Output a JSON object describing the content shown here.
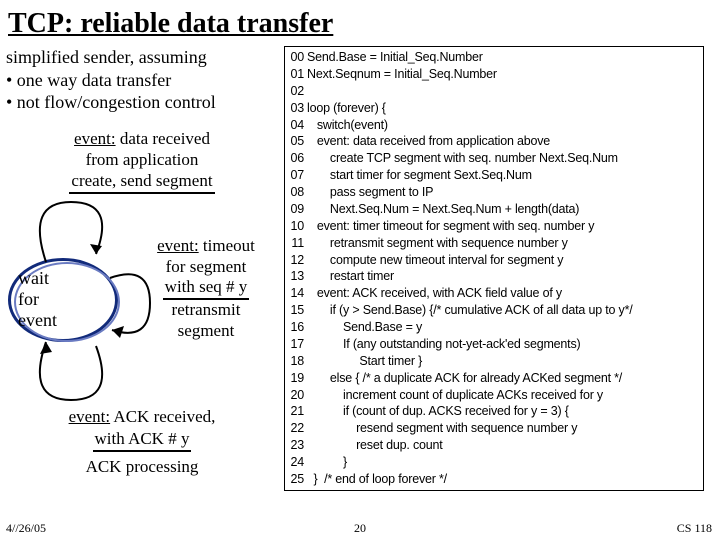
{
  "title": "TCP: reliable data transfer",
  "intro": {
    "lead": "simplified sender, assuming",
    "bullet1": "• one way data transfer",
    "bullet2": "• not flow/congestion control"
  },
  "event1": {
    "label": "event:",
    "text1": " data received",
    "text2": "from application",
    "action": "create, send segment"
  },
  "state": {
    "l1": "wait",
    "l2": "for",
    "l3": "event"
  },
  "timeout": {
    "label": "event:",
    "t1": " timeout",
    "t2": "for segment",
    "t3": "with seq # y",
    "a1": "retransmit",
    "a2": "segment"
  },
  "ack": {
    "label": "event:",
    "t1": " ACK received,",
    "t2": "with ACK # y",
    "action": "ACK processing"
  },
  "code": [
    {
      "n": "00",
      "t": "Send.Base = Initial_Seq.Number"
    },
    {
      "n": "01",
      "t": "Next.Seqnum = Initial_Seq.Number"
    },
    {
      "n": "02",
      "t": ""
    },
    {
      "n": "03",
      "t": "loop (forever) {"
    },
    {
      "n": "04",
      "t": "   switch(event)"
    },
    {
      "n": "05",
      "t": "   event: data received from application above"
    },
    {
      "n": "06",
      "t": "       create TCP segment with seq. number Next.Seq.Num"
    },
    {
      "n": "07",
      "t": "       start timer for segment Sext.Seq.Num"
    },
    {
      "n": "08",
      "t": "       pass segment to IP"
    },
    {
      "n": "09",
      "t": "       Next.Seq.Num = Next.Seq.Num + length(data)"
    },
    {
      "n": "10",
      "t": "   event: timer timeout for segment with seq. number y"
    },
    {
      "n": "11",
      "t": "       retransmit segment with sequence number y"
    },
    {
      "n": "12",
      "t": "       compute new timeout interval for segment y"
    },
    {
      "n": "13",
      "t": "       restart timer"
    },
    {
      "n": "14",
      "t": "   event: ACK received, with ACK field value of y"
    },
    {
      "n": "15",
      "t": "       if (y > Send.Base) {/* cumulative ACK of all data up to y*/"
    },
    {
      "n": "16",
      "t": "           Send.Base = y"
    },
    {
      "n": "17",
      "t": "           If (any outstanding not-yet-ack'ed segments)"
    },
    {
      "n": "18",
      "t": "                Start timer }"
    },
    {
      "n": "19",
      "t": "       else { /* a duplicate ACK for already ACKed segment */"
    },
    {
      "n": "20",
      "t": "           increment count of duplicate ACKs received for y"
    },
    {
      "n": "21",
      "t": "           if (count of dup. ACKS received for y = 3) {"
    },
    {
      "n": "22",
      "t": "               resend segment with sequence number y"
    },
    {
      "n": "23",
      "t": "               reset dup. count"
    },
    {
      "n": "24",
      "t": "           }"
    },
    {
      "n": "25",
      "t": "  }  /* end of loop forever */"
    }
  ],
  "footer": {
    "date": "4//26/05",
    "page": "20",
    "course": "CS 118"
  },
  "colors": {
    "ellipse": "#112a7a",
    "text": "#000000",
    "border": "#000000",
    "bg": "#ffffff"
  }
}
